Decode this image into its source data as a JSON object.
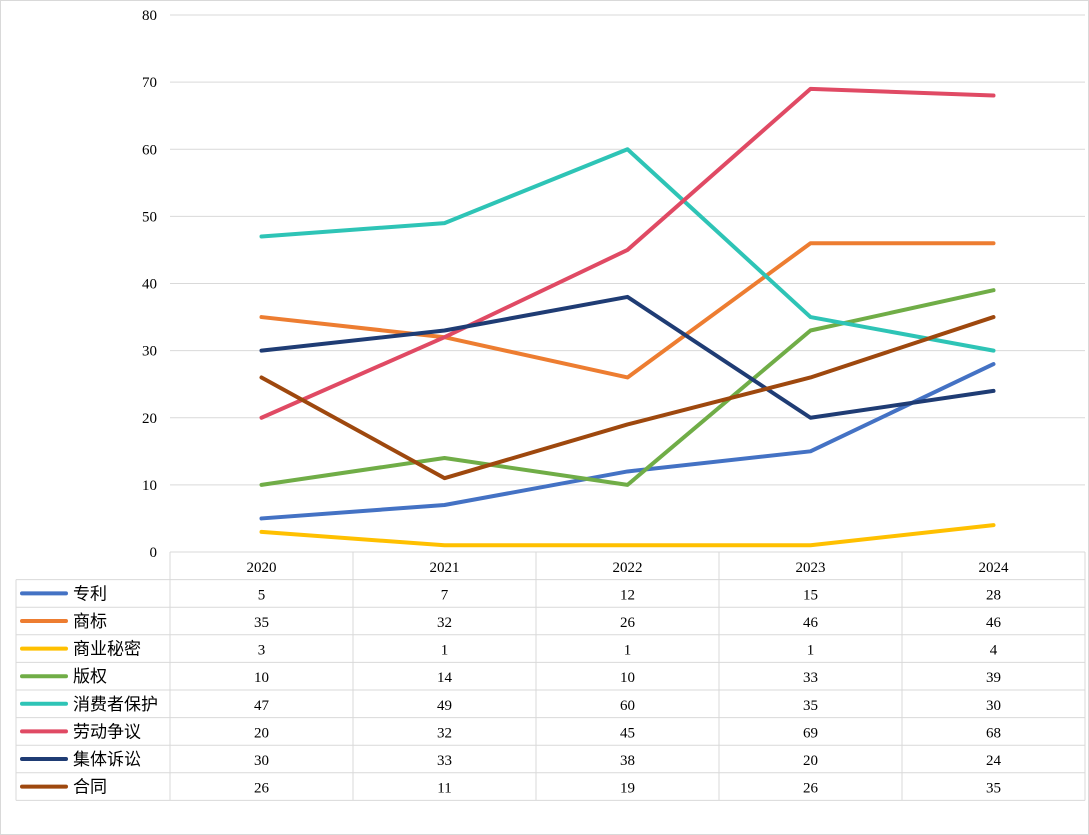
{
  "chart_data": {
    "type": "line",
    "title": "",
    "xlabel": "",
    "ylabel": "",
    "ylim": [
      0,
      80
    ],
    "y_ticks": [
      "0",
      "10",
      "20",
      "30",
      "40",
      "50",
      "60",
      "70",
      "80"
    ],
    "grid": true,
    "legend": "data-table",
    "categories": [
      "2020",
      "2021",
      "2022",
      "2023",
      "2024"
    ],
    "series": [
      {
        "name": "专利",
        "color": "#4472c4",
        "values": [
          5,
          7,
          12,
          15,
          28
        ]
      },
      {
        "name": "商标",
        "color": "#ed7d31",
        "values": [
          35,
          32,
          26,
          46,
          46
        ]
      },
      {
        "name": "商业秘密",
        "color": "#ffc000",
        "values": [
          3,
          1,
          1,
          1,
          4
        ]
      },
      {
        "name": "版权",
        "color": "#70ad47",
        "values": [
          10,
          14,
          10,
          33,
          39
        ]
      },
      {
        "name": "消费者保护",
        "color": "#2ec4b6",
        "values": [
          47,
          49,
          60,
          35,
          30
        ]
      },
      {
        "name": "劳动争议",
        "color": "#e04a64",
        "values": [
          20,
          32,
          45,
          69,
          68
        ]
      },
      {
        "name": "集体诉讼",
        "color": "#1f3c74",
        "values": [
          30,
          33,
          38,
          20,
          24
        ]
      },
      {
        "name": "合同",
        "color": "#9e480e",
        "values": [
          26,
          11,
          19,
          26,
          35
        ]
      }
    ]
  }
}
